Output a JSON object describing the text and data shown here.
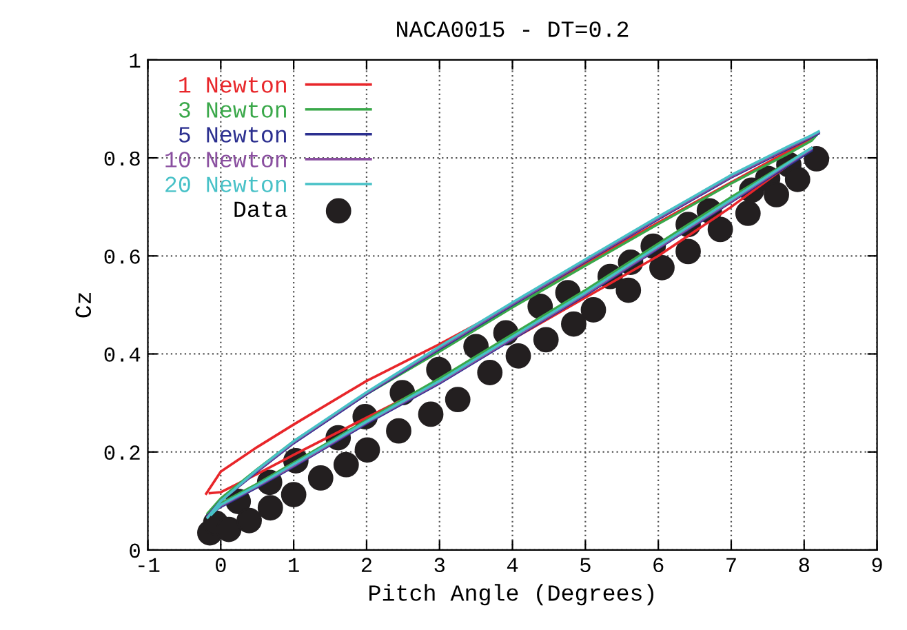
{
  "chart_data": {
    "type": "line",
    "title": "NACA0015 - DT=0.2",
    "xlabel": "Pitch Angle (Degrees)",
    "ylabel": "Cz",
    "xlim": [
      -1,
      9
    ],
    "ylim": [
      0,
      1
    ],
    "xticks": [
      -1,
      0,
      1,
      2,
      3,
      4,
      5,
      6,
      7,
      8,
      9
    ],
    "yticks": [
      0,
      0.2,
      0.4,
      0.6,
      0.8,
      1
    ],
    "grid": true,
    "legend": "top left",
    "line_style": "solid",
    "series": [
      {
        "name": "1 Newton",
        "type": "line",
        "color": "#e8262a",
        "x": [
          -0.2,
          0,
          0.5,
          1,
          2,
          3,
          4,
          5,
          6,
          7,
          7.8,
          8.1,
          8.15
        ],
        "values": [
          0.115,
          0.16,
          0.21,
          0.256,
          0.345,
          0.42,
          0.5,
          0.585,
          0.668,
          0.75,
          0.815,
          0.84,
          0.845
        ]
      },
      {
        "color": "#e8262a",
        "x": [
          -0.15,
          0,
          0.5,
          1,
          2,
          3,
          4,
          5,
          6,
          7,
          8.1
        ],
        "values": [
          0.116,
          0.118,
          0.155,
          0.194,
          0.27,
          0.345,
          0.43,
          0.515,
          0.6,
          0.7,
          0.82
        ]
      },
      {
        "name": "3 Newton",
        "type": "line",
        "color": "#3aa84a",
        "x": [
          -0.18,
          0,
          0.5,
          1,
          2,
          3,
          4,
          5,
          6,
          7,
          7.8,
          8.1,
          8.18
        ],
        "values": [
          0.075,
          0.105,
          0.165,
          0.222,
          0.318,
          0.405,
          0.495,
          0.58,
          0.665,
          0.748,
          0.81,
          0.835,
          0.848
        ]
      },
      {
        "color": "#3aa84a",
        "x": [
          -0.13,
          0,
          0.5,
          1,
          2,
          3,
          4,
          5,
          6,
          7,
          8.1
        ],
        "values": [
          0.08,
          0.095,
          0.135,
          0.178,
          0.265,
          0.35,
          0.44,
          0.53,
          0.625,
          0.72,
          0.82
        ]
      },
      {
        "name": "5 Newton",
        "type": "line",
        "color": "#2b2f8f",
        "x": [
          -0.18,
          0,
          0.5,
          1,
          2,
          3,
          4,
          5,
          6,
          7,
          7.8,
          8.1,
          8.2
        ],
        "values": [
          0.07,
          0.1,
          0.16,
          0.218,
          0.318,
          0.41,
          0.5,
          0.588,
          0.675,
          0.76,
          0.82,
          0.842,
          0.85
        ]
      },
      {
        "color": "#2b2f8f",
        "x": [
          -0.13,
          0,
          0.5,
          1,
          2,
          3,
          4,
          5,
          6,
          7,
          8.1
        ],
        "values": [
          0.075,
          0.088,
          0.128,
          0.17,
          0.258,
          0.34,
          0.43,
          0.52,
          0.615,
          0.71,
          0.815
        ]
      },
      {
        "name": "10 Newton",
        "type": "line",
        "color": "#8a4fa0",
        "x": [
          -0.18,
          0,
          0.5,
          1,
          2,
          3,
          4,
          5,
          6,
          7,
          7.8,
          8.1,
          8.2
        ],
        "values": [
          0.068,
          0.1,
          0.162,
          0.22,
          0.32,
          0.412,
          0.502,
          0.59,
          0.677,
          0.762,
          0.822,
          0.844,
          0.852
        ]
      },
      {
        "color": "#8a4fa0",
        "x": [
          -0.13,
          0,
          0.5,
          1,
          2,
          3,
          4,
          5,
          6,
          7,
          8.1
        ],
        "values": [
          0.074,
          0.09,
          0.13,
          0.172,
          0.26,
          0.342,
          0.432,
          0.522,
          0.617,
          0.712,
          0.818
        ]
      },
      {
        "name": "20 Newton",
        "type": "line",
        "color": "#47c1c7",
        "x": [
          -0.18,
          0,
          0.5,
          1,
          2,
          3,
          4,
          5,
          6,
          7,
          7.8,
          8.1,
          8.2
        ],
        "values": [
          0.066,
          0.1,
          0.164,
          0.222,
          0.322,
          0.415,
          0.505,
          0.593,
          0.68,
          0.765,
          0.825,
          0.846,
          0.854
        ]
      },
      {
        "color": "#47c1c7",
        "x": [
          -0.13,
          0,
          0.5,
          1,
          2,
          3,
          4,
          5,
          6,
          7,
          8.1
        ],
        "values": [
          0.072,
          0.092,
          0.132,
          0.175,
          0.262,
          0.345,
          0.435,
          0.525,
          0.62,
          0.715,
          0.82
        ]
      },
      {
        "name": "Data",
        "type": "scatter",
        "color": "#231f20",
        "marker": "circle",
        "x": [
          -0.15,
          -0.07,
          0.11,
          0.24,
          0.39,
          0.67,
          0.68,
          1.0,
          1.03,
          1.37,
          1.61,
          1.72,
          1.98,
          2.01,
          2.44,
          2.49,
          2.88,
          2.99,
          3.25,
          3.5,
          3.69,
          3.91,
          4.08,
          4.38,
          4.46,
          4.76,
          4.84,
          5.11,
          5.34,
          5.59,
          5.62,
          5.93,
          6.05,
          6.41,
          6.41,
          6.7,
          6.85,
          7.23,
          7.28,
          7.5,
          7.62,
          7.79,
          7.91,
          8.17
        ],
        "values": [
          0.035,
          0.055,
          0.042,
          0.099,
          0.06,
          0.138,
          0.086,
          0.113,
          0.182,
          0.147,
          0.229,
          0.174,
          0.272,
          0.204,
          0.243,
          0.321,
          0.277,
          0.368,
          0.307,
          0.415,
          0.362,
          0.443,
          0.396,
          0.497,
          0.429,
          0.525,
          0.461,
          0.49,
          0.558,
          0.53,
          0.587,
          0.62,
          0.576,
          0.664,
          0.609,
          0.692,
          0.654,
          0.687,
          0.734,
          0.758,
          0.725,
          0.786,
          0.756,
          0.798
        ]
      }
    ]
  }
}
